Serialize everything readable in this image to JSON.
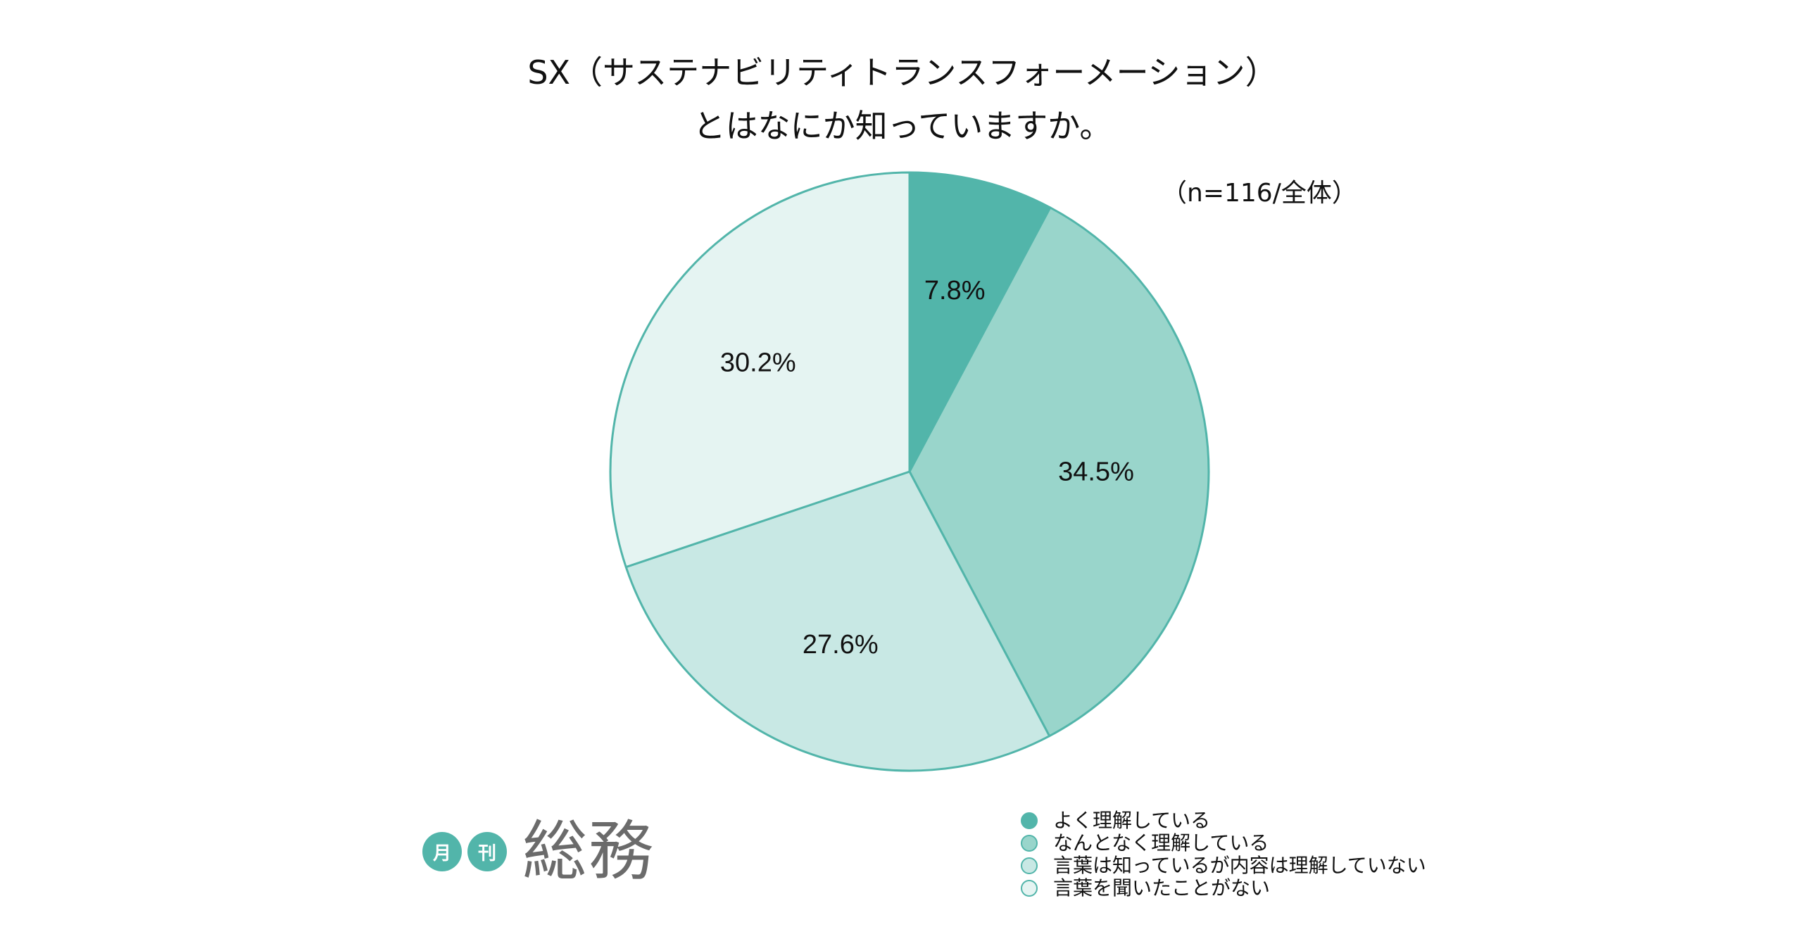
{
  "title": {
    "line1": "SX（サステナビリティトランスフォーメーション）",
    "line2": "とはなにか知っていますか。"
  },
  "note": "（n=116/全体）",
  "logo": {
    "badge1": "月",
    "badge2": "刊",
    "word": "総務"
  },
  "colors": {
    "stroke": "#52b5aa"
  },
  "chart_data": {
    "type": "pie",
    "title": "SX（サステナビリティトランスフォーメーション）とはなにか知っていますか。",
    "note": "（n=116/全体）",
    "legend_position": "bottom-right",
    "slices": [
      {
        "label": "よく理解している",
        "value": 7.8,
        "display": "7.8%",
        "color": "#52b5aa"
      },
      {
        "label": "なんとなく理解している",
        "value": 34.5,
        "display": "34.5%",
        "color": "#99d5cb"
      },
      {
        "label": "言葉は知っているが内容は理解していない",
        "value": 27.6,
        "display": "27.6%",
        "color": "#c8e8e4"
      },
      {
        "label": "言葉を聞いたことがない",
        "value": 30.2,
        "display": "30.2%",
        "color": "#e5f4f2"
      }
    ]
  }
}
